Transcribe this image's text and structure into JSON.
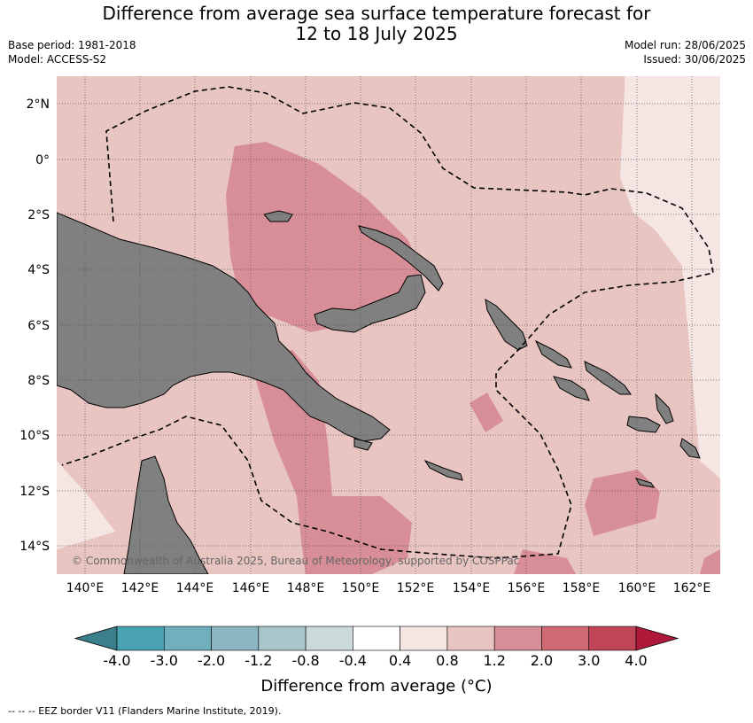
{
  "title_line1": "Difference from average sea surface temperature forecast for",
  "title_line2": "12 to 18 July 2025",
  "base_period": "Base period: 1981-2018",
  "model": "Model: ACCESS-S2",
  "model_run": "Model run: 28/06/2025",
  "issued": "Issued: 30/06/2025",
  "lat_labels": [
    "2°N",
    "0°",
    "2°S",
    "4°S",
    "6°S",
    "8°S",
    "10°S",
    "12°S",
    "14°S"
  ],
  "lon_labels": [
    "140°E",
    "142°E",
    "144°E",
    "146°E",
    "148°E",
    "150°E",
    "152°E",
    "154°E",
    "156°E",
    "158°E",
    "160°E",
    "162°E"
  ],
  "copyright": "© Commonwealth of Australia 2025, Bureau of Meteorology, supported by COSPPac",
  "colorbar": {
    "title": "Difference from average (°C)",
    "tick_labels": [
      "-4.0",
      "-3.0",
      "-2.0",
      "-1.2",
      "-0.8",
      "-0.4",
      "0.4",
      "0.8",
      "1.2",
      "2.0",
      "3.0",
      "4.0"
    ],
    "colors": [
      "#3a7f8a",
      "#49a3b2",
      "#6fafbe",
      "#8cb6c2",
      "#a8c6ca",
      "#cbd9da",
      "#ffffff",
      "#f5e6e4",
      "#e8c5c1",
      "#d88e96",
      "#ce6b75",
      "#c04556",
      "#b01a3a"
    ]
  },
  "legend_footnote": "-- -- -- EEZ border V11 (Flanders Marine Institute, 2019).",
  "colors": {
    "land": "#808080",
    "grid": "#555555"
  }
}
